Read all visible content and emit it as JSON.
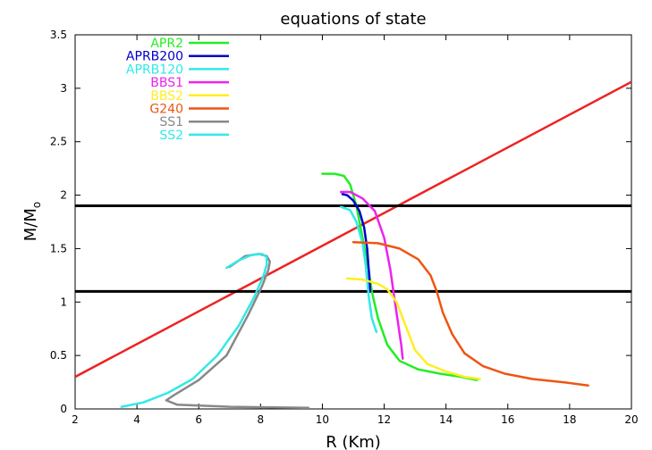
{
  "chart_data": {
    "type": "line",
    "title": "equations of state",
    "xlabel": "R (Km)",
    "ylabel": {
      "main": "M/M",
      "sub": "o"
    },
    "xlim": [
      2,
      20
    ],
    "ylim": [
      0,
      3.5
    ],
    "xticks": [
      "2",
      "4",
      "6",
      "8",
      "10",
      "12",
      "14",
      "16",
      "18",
      "20"
    ],
    "yticks": [
      "0",
      "0.5",
      "1",
      "1.5",
      "2",
      "2.5",
      "3",
      "3.5"
    ],
    "legend_position": "top-left",
    "series": [
      {
        "name": "APR2",
        "color": "#22ee22",
        "x": [
          10.0,
          10.4,
          10.7,
          10.9,
          11.1,
          11.3,
          11.5,
          11.6,
          11.8,
          12.1,
          12.5,
          13.1,
          13.8,
          14.5,
          15.0
        ],
        "y": [
          2.2,
          2.2,
          2.18,
          2.1,
          1.9,
          1.6,
          1.3,
          1.1,
          0.85,
          0.6,
          0.45,
          0.37,
          0.33,
          0.3,
          0.27
        ]
      },
      {
        "name": "APRB200",
        "color": "#0000cc",
        "x": [
          10.65,
          10.8,
          11.0,
          11.2,
          11.35,
          11.45,
          11.5,
          11.55
        ],
        "y": [
          2.01,
          2.0,
          1.95,
          1.85,
          1.7,
          1.5,
          1.3,
          1.1
        ]
      },
      {
        "name": "APRB120",
        "color": "#33e8e8",
        "x": [
          10.6,
          10.9,
          11.1,
          11.3,
          11.4,
          11.45,
          11.5,
          11.6,
          11.75
        ],
        "y": [
          1.89,
          1.86,
          1.75,
          1.55,
          1.35,
          1.2,
          1.05,
          0.85,
          0.72
        ]
      },
      {
        "name": "BBS1",
        "color": "#ee22ee",
        "x": [
          10.6,
          10.9,
          11.3,
          11.7,
          12.0,
          12.2,
          12.35,
          12.45,
          12.55,
          12.6
        ],
        "y": [
          2.03,
          2.03,
          1.97,
          1.85,
          1.6,
          1.3,
          1.0,
          0.8,
          0.6,
          0.47
        ]
      },
      {
        "name": "BBS2",
        "color": "#ffee22",
        "x": [
          10.8,
          11.3,
          11.8,
          12.1,
          12.4,
          12.6,
          12.8,
          13.0,
          13.4,
          14.0,
          14.6,
          15.1
        ],
        "y": [
          1.22,
          1.21,
          1.17,
          1.12,
          1.0,
          0.85,
          0.7,
          0.55,
          0.42,
          0.35,
          0.3,
          0.28
        ]
      },
      {
        "name": "G240",
        "color": "#ee5511",
        "x": [
          11.0,
          11.8,
          12.5,
          13.1,
          13.5,
          13.7,
          13.9,
          14.2,
          14.6,
          15.2,
          15.9,
          16.8,
          17.8,
          18.6
        ],
        "y": [
          1.56,
          1.55,
          1.5,
          1.4,
          1.25,
          1.1,
          0.9,
          0.7,
          0.52,
          0.4,
          0.33,
          0.28,
          0.25,
          0.22
        ]
      },
      {
        "name": "SS1",
        "color": "#888888",
        "x": [
          9.55,
          7.0,
          5.3,
          4.95,
          5.15,
          6.0,
          6.9,
          7.6,
          8.05,
          8.25,
          8.3,
          8.2,
          7.95,
          7.5,
          7.0
        ],
        "y": [
          0.01,
          0.02,
          0.04,
          0.08,
          0.12,
          0.27,
          0.5,
          0.88,
          1.15,
          1.3,
          1.38,
          1.43,
          1.45,
          1.43,
          1.33
        ]
      },
      {
        "name": "SS2",
        "color": "#33e8e8",
        "x": [
          3.5,
          4.2,
          5.0,
          5.8,
          6.6,
          7.3,
          7.8,
          8.1,
          8.2,
          8.2,
          8.05,
          7.7,
          7.3,
          6.9
        ],
        "y": [
          0.02,
          0.06,
          0.15,
          0.28,
          0.5,
          0.78,
          1.05,
          1.25,
          1.35,
          1.42,
          1.45,
          1.44,
          1.39,
          1.32
        ]
      }
    ],
    "reference_lines": [
      {
        "kind": "diagonal",
        "color": "#ee2222",
        "x": [
          2,
          20
        ],
        "y": [
          0.3,
          3.06
        ]
      },
      {
        "kind": "horizontal",
        "color": "#000000",
        "y": 1.9
      },
      {
        "kind": "horizontal",
        "color": "#000000",
        "y": 1.1
      }
    ]
  }
}
